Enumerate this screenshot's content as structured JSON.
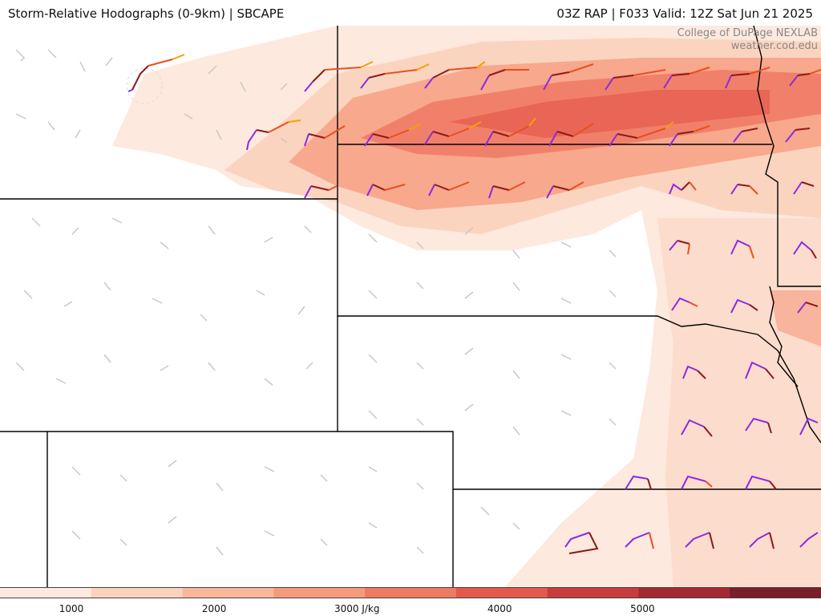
{
  "header": {
    "title_left": "Storm-Relative Hodographs (0-9km) | SBCAPE",
    "title_right": "03Z RAP | F033 Valid: 12Z Sat Jun 21 2025"
  },
  "credit": {
    "line1": "College of DuPage NEXLAB",
    "line2": "weather.cod.edu"
  },
  "colorbar": {
    "ticks": [
      "1000",
      "2000",
      "3000 J/kg",
      "4000",
      "5000"
    ],
    "tick_values": [
      1000,
      2000,
      3000,
      4000,
      5000
    ],
    "range": [
      500,
      6250
    ],
    "colors": [
      "#fde9dd",
      "#fcd2bd",
      "#fab89b",
      "#f59a7c",
      "#ee7c63",
      "#e35a4d",
      "#c83c3c",
      "#a32a33",
      "#7a1e2a"
    ]
  },
  "colors": {
    "hodo_low": "#8b1a1a",
    "hodo_mid": "#e8501e",
    "hodo_high": "#f5a000",
    "hodo_upper": "#8a2be2",
    "barb": "#c8c8c8",
    "border": "#000000"
  }
}
